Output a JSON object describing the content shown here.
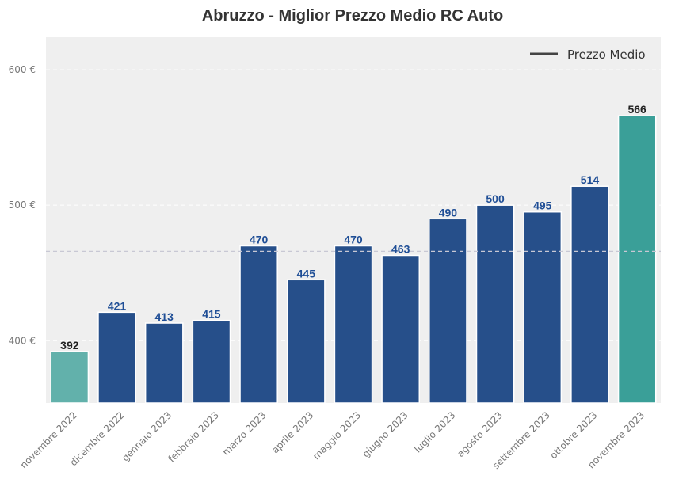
{
  "chart_data": {
    "type": "bar",
    "title": "Abruzzo - Miglior Prezzo Medio RC Auto",
    "categories": [
      "novembre 2022",
      "dicembre 2022",
      "gennaio 2023",
      "febbraio 2023",
      "marzo 2023",
      "aprile 2023",
      "maggio 2023",
      "giugno 2023",
      "luglio 2023",
      "agosto 2023",
      "settembre 2023",
      "ottobre 2023",
      "novembre 2023"
    ],
    "values": [
      392,
      421,
      413,
      415,
      470,
      445,
      470,
      463,
      490,
      500,
      495,
      514,
      566
    ],
    "data_labels": [
      "392",
      "421",
      "413",
      "415",
      "470",
      "445",
      "470",
      "463",
      "490",
      "500",
      "495",
      "514",
      "566"
    ],
    "bar_colors": [
      "#62b1ab",
      "#264f8a",
      "#264f8a",
      "#264f8a",
      "#264f8a",
      "#264f8a",
      "#264f8a",
      "#264f8a",
      "#264f8a",
      "#264f8a",
      "#264f8a",
      "#264f8a",
      "#3a9f98"
    ],
    "label_colors": [
      "#222222",
      "#1f4e96",
      "#1f4e96",
      "#1f4e96",
      "#1f4e96",
      "#1f4e96",
      "#1f4e96",
      "#1f4e96",
      "#1f4e96",
      "#1f4e96",
      "#1f4e96",
      "#1f4e96",
      "#222222"
    ],
    "average_value": 466,
    "yticks": [
      400,
      500,
      600
    ],
    "ytick_labels": [
      "400 €",
      "500 €",
      "600 €"
    ],
    "ylim": [
      354,
      624
    ],
    "xlabel": "",
    "ylabel": "",
    "grid": true,
    "legend": {
      "entries": [
        "Prezzo Medio"
      ],
      "placement": "top-right"
    },
    "colors": {
      "plot_bg": "#efefef",
      "average_line": "#c8c8d4",
      "legend_line": "#444444",
      "title": "#333333",
      "tick": "#777777"
    }
  }
}
